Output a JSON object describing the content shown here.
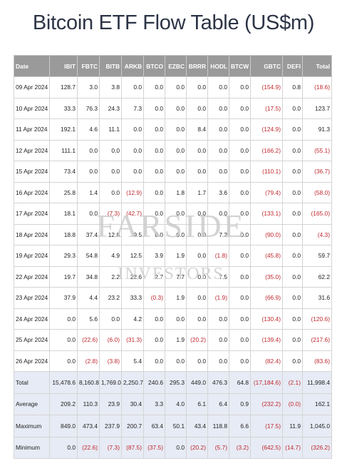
{
  "title": "Bitcoin ETF Flow Table (US$m)",
  "watermark": {
    "main": "FARSIDE",
    "sub": "INVESTORS"
  },
  "columns": [
    "Date",
    "IBIT",
    "FBTC",
    "BITB",
    "ARKB",
    "BTCO",
    "EZBC",
    "BRRR",
    "HODL",
    "BTCW",
    "GBTC",
    "DEFI",
    "Total"
  ],
  "rows": [
    [
      "09 Apr 2024",
      "128.7",
      "3.0",
      "3.8",
      "0.0",
      "0.0",
      "0.0",
      "0.0",
      "0.0",
      "0.0",
      "(154.9)",
      "0.8",
      "(18.6)"
    ],
    [
      "10 Apr 2024",
      "33.3",
      "76.3",
      "24.3",
      "7.3",
      "0.0",
      "0.0",
      "0.0",
      "0.0",
      "0.0",
      "(17.5)",
      "0.0",
      "123.7"
    ],
    [
      "11 Apr 2024",
      "192.1",
      "4.6",
      "11.1",
      "0.0",
      "0.0",
      "0.0",
      "8.4",
      "0.0",
      "0.0",
      "(124.9)",
      "0.0",
      "91.3"
    ],
    [
      "12 Apr 2024",
      "111.1",
      "0.0",
      "0.0",
      "0.0",
      "0.0",
      "0.0",
      "0.0",
      "0.0",
      "0.0",
      "(166.2)",
      "0.0",
      "(55.1)"
    ],
    [
      "15 Apr 2024",
      "73.4",
      "0.0",
      "0.0",
      "0.0",
      "0.0",
      "0.0",
      "0.0",
      "0.0",
      "0.0",
      "(110.1)",
      "0.0",
      "(36.7)"
    ],
    [
      "16 Apr 2024",
      "25.8",
      "1.4",
      "0.0",
      "(12.9)",
      "0.0",
      "1.8",
      "1.7",
      "3.6",
      "0.0",
      "(79.4)",
      "0.0",
      "(58.0)"
    ],
    [
      "17 Apr 2024",
      "18.1",
      "0.0",
      "(7.3)",
      "(42.7)",
      "0.0",
      "0.0",
      "0.0",
      "0.0",
      "0.0",
      "(133.1)",
      "0.0",
      "(165.0)"
    ],
    [
      "18 Apr 2024",
      "18.8",
      "37.4",
      "12.8",
      "9.5",
      "0.0",
      "0.0",
      "0.0",
      "7.2",
      "0.0",
      "(90.0)",
      "0.0",
      "(4.3)"
    ],
    [
      "19 Apr 2024",
      "29.3",
      "54.8",
      "4.9",
      "12.5",
      "3.9",
      "1.9",
      "0.0",
      "(1.8)",
      "0.0",
      "(45.8)",
      "0.0",
      "59.7"
    ],
    [
      "22 Apr 2024",
      "19.7",
      "34.8",
      "2.2",
      "22.6",
      "2.7",
      "7.7",
      "0.0",
      "7.5",
      "0.0",
      "(35.0)",
      "0.0",
      "62.2"
    ],
    [
      "23 Apr 2024",
      "37.9",
      "4.4",
      "23.2",
      "33.3",
      "(0.3)",
      "1.9",
      "0.0",
      "(1.9)",
      "0.0",
      "(66.9)",
      "0.0",
      "31.6"
    ],
    [
      "24 Apr 2024",
      "0.0",
      "5.6",
      "0.0",
      "4.2",
      "0.0",
      "0.0",
      "0.0",
      "0.0",
      "0.0",
      "(130.4)",
      "0.0",
      "(120.6)"
    ],
    [
      "25 Apr 2024",
      "0.0",
      "(22.6)",
      "(6.0)",
      "(31.3)",
      "0.0",
      "1.9",
      "(20.2)",
      "0.0",
      "0.0",
      "(139.4)",
      "0.0",
      "(217.6)"
    ],
    [
      "26 Apr 2024",
      "0.0",
      "(2.8)",
      "(3.8)",
      "5.4",
      "0.0",
      "0.0",
      "0.0",
      "0.0",
      "0.0",
      "(82.4)",
      "0.0",
      "(83.6)"
    ]
  ],
  "summary": [
    [
      "Total",
      "15,478.6",
      "8,160.8",
      "1,769.0",
      "2,250.7",
      "240.6",
      "295.3",
      "449.0",
      "476.3",
      "64.8",
      "(17,184.6)",
      "(2.1)",
      "11,998.4"
    ],
    [
      "Average",
      "209.2",
      "110.3",
      "23.9",
      "30.4",
      "3.3",
      "4.0",
      "6.1",
      "6.4",
      "0.9",
      "(232.2)",
      "(0.0)",
      "162.1"
    ],
    [
      "Maximum",
      "849.0",
      "473.4",
      "237.9",
      "200.7",
      "63.4",
      "50.1",
      "43.4",
      "118.8",
      "6.6",
      "(17.5)",
      "11.9",
      "1,045.0"
    ],
    [
      "Minimum",
      "0.0",
      "(22.6)",
      "(7.3)",
      "(87.5)",
      "(37.5)",
      "0.0",
      "(20.2)",
      "(5.7)",
      "(3.2)",
      "(642.5)",
      "(14.7)",
      "(326.2)"
    ]
  ],
  "colors": {
    "header_bg": "#9a9a9a",
    "negative": "#c0282d",
    "summary_bg": "#e7ebf5",
    "title": "#2d3446"
  }
}
